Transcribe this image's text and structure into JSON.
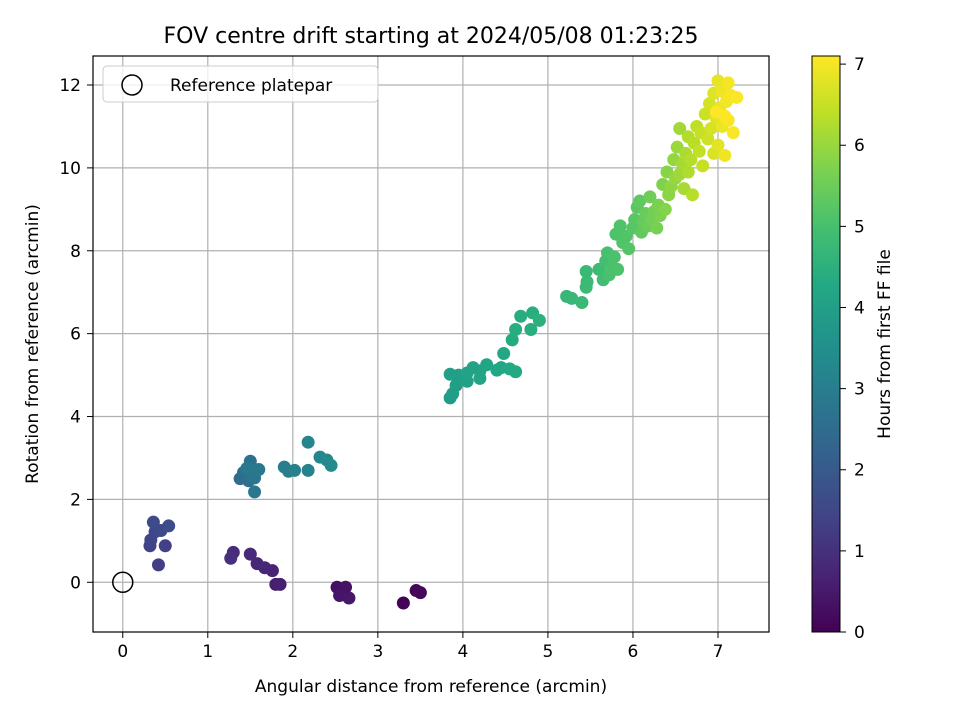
{
  "chart_data": {
    "type": "scatter",
    "title": "FOV centre drift starting at 2024/05/08 01:23:25",
    "xlabel": "Angular distance from reference (arcmin)",
    "ylabel": "Rotation from reference (arcmin)",
    "xlim": [
      -0.35,
      7.6
    ],
    "ylim": [
      -1.2,
      12.7
    ],
    "xticks": [
      0,
      1,
      2,
      3,
      4,
      5,
      6,
      7
    ],
    "yticks": [
      0,
      2,
      4,
      6,
      8,
      10,
      12
    ],
    "grid": true,
    "legend": {
      "placement": "top-left",
      "entries": [
        "Reference platepar"
      ]
    },
    "reference_point": {
      "x": 0,
      "y": 0
    },
    "colorbar": {
      "label": "Hours from first FF file",
      "range": [
        0,
        7.1
      ],
      "ticks": [
        0,
        1,
        2,
        3,
        4,
        5,
        6,
        7
      ],
      "colormap": "viridis"
    },
    "points": [
      {
        "x": 3.3,
        "y": -0.5,
        "c": 0.05
      },
      {
        "x": 3.45,
        "y": -0.2,
        "c": 0.1
      },
      {
        "x": 3.5,
        "y": -0.25,
        "c": 0.15
      },
      {
        "x": 2.52,
        "y": -0.12,
        "c": 0.3
      },
      {
        "x": 2.62,
        "y": -0.12,
        "c": 0.35
      },
      {
        "x": 2.55,
        "y": -0.32,
        "c": 0.4
      },
      {
        "x": 2.66,
        "y": -0.38,
        "c": 0.45
      },
      {
        "x": 1.8,
        "y": -0.05,
        "c": 0.6
      },
      {
        "x": 1.85,
        "y": -0.05,
        "c": 0.62
      },
      {
        "x": 1.76,
        "y": 0.28,
        "c": 0.7
      },
      {
        "x": 1.67,
        "y": 0.35,
        "c": 0.75
      },
      {
        "x": 1.58,
        "y": 0.45,
        "c": 0.8
      },
      {
        "x": 1.5,
        "y": 0.68,
        "c": 0.85
      },
      {
        "x": 1.3,
        "y": 0.72,
        "c": 0.9
      },
      {
        "x": 1.27,
        "y": 0.58,
        "c": 0.95
      },
      {
        "x": 0.42,
        "y": 0.42,
        "c": 1.3
      },
      {
        "x": 0.5,
        "y": 0.88,
        "c": 1.35
      },
      {
        "x": 0.32,
        "y": 0.88,
        "c": 1.4
      },
      {
        "x": 0.33,
        "y": 1.02,
        "c": 1.45
      },
      {
        "x": 0.38,
        "y": 1.22,
        "c": 1.5
      },
      {
        "x": 0.45,
        "y": 1.25,
        "c": 1.55
      },
      {
        "x": 0.36,
        "y": 1.45,
        "c": 1.6
      },
      {
        "x": 0.54,
        "y": 1.36,
        "c": 1.65
      },
      {
        "x": 1.38,
        "y": 2.5,
        "c": 2.5
      },
      {
        "x": 1.42,
        "y": 2.65,
        "c": 2.55
      },
      {
        "x": 1.48,
        "y": 2.45,
        "c": 2.6
      },
      {
        "x": 1.5,
        "y": 2.92,
        "c": 2.65
      },
      {
        "x": 1.52,
        "y": 2.62,
        "c": 2.7
      },
      {
        "x": 1.55,
        "y": 2.52,
        "c": 2.75
      },
      {
        "x": 1.55,
        "y": 2.18,
        "c": 2.8
      },
      {
        "x": 1.6,
        "y": 2.72,
        "c": 2.85
      },
      {
        "x": 1.46,
        "y": 2.75,
        "c": 2.88
      },
      {
        "x": 1.9,
        "y": 2.78,
        "c": 3.0
      },
      {
        "x": 1.95,
        "y": 2.68,
        "c": 3.05
      },
      {
        "x": 2.02,
        "y": 2.7,
        "c": 3.1
      },
      {
        "x": 2.18,
        "y": 2.7,
        "c": 3.15
      },
      {
        "x": 2.18,
        "y": 3.38,
        "c": 3.2
      },
      {
        "x": 2.32,
        "y": 3.02,
        "c": 3.25
      },
      {
        "x": 2.4,
        "y": 2.95,
        "c": 3.3
      },
      {
        "x": 2.45,
        "y": 2.82,
        "c": 3.35
      },
      {
        "x": 3.85,
        "y": 4.45,
        "c": 3.9
      },
      {
        "x": 3.88,
        "y": 4.55,
        "c": 3.92
      },
      {
        "x": 3.92,
        "y": 4.75,
        "c": 3.95
      },
      {
        "x": 3.85,
        "y": 5.02,
        "c": 4.0
      },
      {
        "x": 3.95,
        "y": 5.0,
        "c": 4.02
      },
      {
        "x": 4.05,
        "y": 4.85,
        "c": 4.05
      },
      {
        "x": 4.05,
        "y": 5.05,
        "c": 4.08
      },
      {
        "x": 4.12,
        "y": 5.18,
        "c": 4.1
      },
      {
        "x": 4.2,
        "y": 5.1,
        "c": 4.12
      },
      {
        "x": 4.2,
        "y": 4.92,
        "c": 4.15
      },
      {
        "x": 4.28,
        "y": 5.25,
        "c": 4.18
      },
      {
        "x": 4.4,
        "y": 5.12,
        "c": 4.2
      },
      {
        "x": 4.45,
        "y": 5.18,
        "c": 4.22
      },
      {
        "x": 4.48,
        "y": 5.52,
        "c": 4.25
      },
      {
        "x": 4.55,
        "y": 5.15,
        "c": 4.28
      },
      {
        "x": 4.62,
        "y": 5.08,
        "c": 4.3
      },
      {
        "x": 4.58,
        "y": 5.85,
        "c": 4.35
      },
      {
        "x": 4.62,
        "y": 6.1,
        "c": 4.38
      },
      {
        "x": 4.68,
        "y": 6.42,
        "c": 4.4
      },
      {
        "x": 4.8,
        "y": 6.1,
        "c": 4.42
      },
      {
        "x": 4.82,
        "y": 6.5,
        "c": 4.45
      },
      {
        "x": 4.9,
        "y": 6.32,
        "c": 4.48
      },
      {
        "x": 5.22,
        "y": 6.9,
        "c": 4.7
      },
      {
        "x": 5.28,
        "y": 6.85,
        "c": 4.72
      },
      {
        "x": 5.4,
        "y": 6.75,
        "c": 4.74
      },
      {
        "x": 5.45,
        "y": 7.5,
        "c": 4.76
      },
      {
        "x": 5.45,
        "y": 7.12,
        "c": 4.78
      },
      {
        "x": 5.46,
        "y": 7.25,
        "c": 4.8
      },
      {
        "x": 5.6,
        "y": 7.55,
        "c": 4.85
      },
      {
        "x": 5.65,
        "y": 7.3,
        "c": 4.9
      },
      {
        "x": 5.68,
        "y": 7.75,
        "c": 4.95
      },
      {
        "x": 5.7,
        "y": 7.95,
        "c": 5.0
      },
      {
        "x": 5.72,
        "y": 7.42,
        "c": 5.02
      },
      {
        "x": 5.75,
        "y": 7.6,
        "c": 5.04
      },
      {
        "x": 5.78,
        "y": 7.85,
        "c": 5.06
      },
      {
        "x": 5.82,
        "y": 7.55,
        "c": 5.08
      },
      {
        "x": 5.8,
        "y": 8.4,
        "c": 5.1
      },
      {
        "x": 5.85,
        "y": 8.6,
        "c": 5.12
      },
      {
        "x": 5.88,
        "y": 8.2,
        "c": 5.14
      },
      {
        "x": 5.92,
        "y": 8.35,
        "c": 5.16
      },
      {
        "x": 5.95,
        "y": 8.05,
        "c": 5.18
      },
      {
        "x": 6.0,
        "y": 8.55,
        "c": 5.2
      },
      {
        "x": 6.02,
        "y": 8.75,
        "c": 5.24
      },
      {
        "x": 6.05,
        "y": 9.05,
        "c": 5.28
      },
      {
        "x": 6.08,
        "y": 9.2,
        "c": 5.32
      },
      {
        "x": 6.1,
        "y": 8.45,
        "c": 5.36
      },
      {
        "x": 6.12,
        "y": 8.7,
        "c": 5.4
      },
      {
        "x": 6.15,
        "y": 8.9,
        "c": 5.44
      },
      {
        "x": 6.18,
        "y": 8.6,
        "c": 5.48
      },
      {
        "x": 6.2,
        "y": 9.3,
        "c": 5.52
      },
      {
        "x": 6.22,
        "y": 8.75,
        "c": 5.56
      },
      {
        "x": 6.25,
        "y": 8.95,
        "c": 5.6
      },
      {
        "x": 6.28,
        "y": 8.55,
        "c": 5.64
      },
      {
        "x": 6.3,
        "y": 9.1,
        "c": 5.68
      },
      {
        "x": 6.32,
        "y": 8.85,
        "c": 5.7
      },
      {
        "x": 6.35,
        "y": 9.6,
        "c": 5.74
      },
      {
        "x": 6.38,
        "y": 9.0,
        "c": 5.78
      },
      {
        "x": 6.4,
        "y": 9.9,
        "c": 5.82
      },
      {
        "x": 6.42,
        "y": 9.35,
        "c": 5.86
      },
      {
        "x": 6.45,
        "y": 9.55,
        "c": 5.9
      },
      {
        "x": 6.48,
        "y": 10.2,
        "c": 5.94
      },
      {
        "x": 6.5,
        "y": 9.75,
        "c": 5.98
      },
      {
        "x": 6.52,
        "y": 10.5,
        "c": 6.02
      },
      {
        "x": 6.55,
        "y": 9.85,
        "c": 6.06
      },
      {
        "x": 6.55,
        "y": 10.95,
        "c": 6.1
      },
      {
        "x": 6.58,
        "y": 10.1,
        "c": 6.14
      },
      {
        "x": 6.6,
        "y": 9.5,
        "c": 6.16
      },
      {
        "x": 6.62,
        "y": 10.35,
        "c": 6.2
      },
      {
        "x": 6.65,
        "y": 9.9,
        "c": 6.24
      },
      {
        "x": 6.65,
        "y": 10.75,
        "c": 6.28
      },
      {
        "x": 6.68,
        "y": 10.2,
        "c": 6.3
      },
      {
        "x": 6.7,
        "y": 9.35,
        "c": 6.32
      },
      {
        "x": 6.72,
        "y": 10.6,
        "c": 6.36
      },
      {
        "x": 6.75,
        "y": 11.0,
        "c": 6.4
      },
      {
        "x": 6.78,
        "y": 10.4,
        "c": 6.44
      },
      {
        "x": 6.8,
        "y": 10.85,
        "c": 6.48
      },
      {
        "x": 6.82,
        "y": 10.05,
        "c": 6.5
      },
      {
        "x": 6.85,
        "y": 11.3,
        "c": 6.54
      },
      {
        "x": 6.88,
        "y": 10.7,
        "c": 6.58
      },
      {
        "x": 6.9,
        "y": 11.55,
        "c": 6.62
      },
      {
        "x": 6.92,
        "y": 10.95,
        "c": 6.66
      },
      {
        "x": 6.95,
        "y": 10.35,
        "c": 6.7
      },
      {
        "x": 6.95,
        "y": 11.8,
        "c": 6.74
      },
      {
        "x": 6.98,
        "y": 11.2,
        "c": 6.78
      },
      {
        "x": 7.0,
        "y": 10.55,
        "c": 6.8
      },
      {
        "x": 7.0,
        "y": 12.1,
        "c": 6.84
      },
      {
        "x": 7.02,
        "y": 11.45,
        "c": 6.88
      },
      {
        "x": 7.05,
        "y": 11.0,
        "c": 6.9
      },
      {
        "x": 7.05,
        "y": 11.85,
        "c": 6.94
      },
      {
        "x": 7.08,
        "y": 10.3,
        "c": 6.96
      },
      {
        "x": 7.1,
        "y": 11.6,
        "c": 6.98
      },
      {
        "x": 7.12,
        "y": 12.05,
        "c": 7.0
      },
      {
        "x": 7.12,
        "y": 11.15,
        "c": 7.02
      },
      {
        "x": 7.15,
        "y": 11.75,
        "c": 7.04
      },
      {
        "x": 7.18,
        "y": 10.85,
        "c": 7.06
      },
      {
        "x": 7.22,
        "y": 11.7,
        "c": 7.08
      },
      {
        "x": 6.98,
        "y": 11.35,
        "c": 7.1
      },
      {
        "x": 7.08,
        "y": 11.25,
        "c": 7.1
      }
    ]
  }
}
